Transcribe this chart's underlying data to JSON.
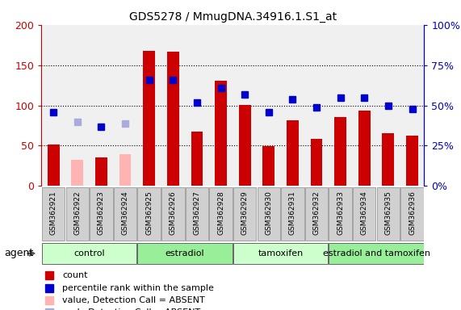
{
  "title": "GDS5278 / MmugDNA.34916.1.S1_at",
  "samples": [
    "GSM362921",
    "GSM362922",
    "GSM362923",
    "GSM362924",
    "GSM362925",
    "GSM362926",
    "GSM362927",
    "GSM362928",
    "GSM362929",
    "GSM362930",
    "GSM362931",
    "GSM362932",
    "GSM362933",
    "GSM362934",
    "GSM362935",
    "GSM362936"
  ],
  "count_values": [
    51,
    null,
    35,
    null,
    168,
    167,
    68,
    131,
    101,
    49,
    82,
    58,
    86,
    94,
    66,
    62
  ],
  "count_absent": [
    null,
    32,
    null,
    39,
    null,
    null,
    null,
    null,
    null,
    null,
    null,
    null,
    null,
    null,
    null,
    null
  ],
  "rank_values": [
    46,
    null,
    37,
    null,
    66,
    66,
    52,
    61,
    57,
    46,
    54,
    49,
    55,
    55,
    50,
    48
  ],
  "rank_absent": [
    null,
    40,
    null,
    39,
    null,
    null,
    null,
    null,
    null,
    null,
    null,
    null,
    null,
    null,
    null,
    null
  ],
  "count_color": "#cc0000",
  "count_absent_color": "#ffb3b3",
  "rank_color": "#0000cc",
  "rank_absent_color": "#aaaadd",
  "ylim_left": [
    0,
    200
  ],
  "ylim_right": [
    0,
    100
  ],
  "yticks_left": [
    0,
    50,
    100,
    150,
    200
  ],
  "yticks_right": [
    0,
    25,
    50,
    75,
    100
  ],
  "yticklabels_right": [
    "0%",
    "25%",
    "50%",
    "75%",
    "100%"
  ],
  "groups": [
    {
      "label": "control",
      "start": 0,
      "end": 3,
      "color": "#ccffcc"
    },
    {
      "label": "estradiol",
      "start": 4,
      "end": 7,
      "color": "#99ee99"
    },
    {
      "label": "tamoxifen",
      "start": 8,
      "end": 11,
      "color": "#ccffcc"
    },
    {
      "label": "estradiol and tamoxifen",
      "start": 12,
      "end": 15,
      "color": "#99ee99"
    }
  ],
  "agent_label": "agent",
  "legend_items": [
    {
      "color": "#cc0000",
      "label": "count"
    },
    {
      "color": "#0000cc",
      "label": "percentile rank within the sample"
    },
    {
      "color": "#ffb3b3",
      "label": "value, Detection Call = ABSENT"
    },
    {
      "color": "#aaaadd",
      "label": "rank, Detection Call = ABSENT"
    }
  ],
  "bar_width": 0.5,
  "marker_size": 6,
  "background_color": "#ffffff",
  "plot_bg": "#f0f0f0",
  "xtick_bg": "#d0d0d0"
}
